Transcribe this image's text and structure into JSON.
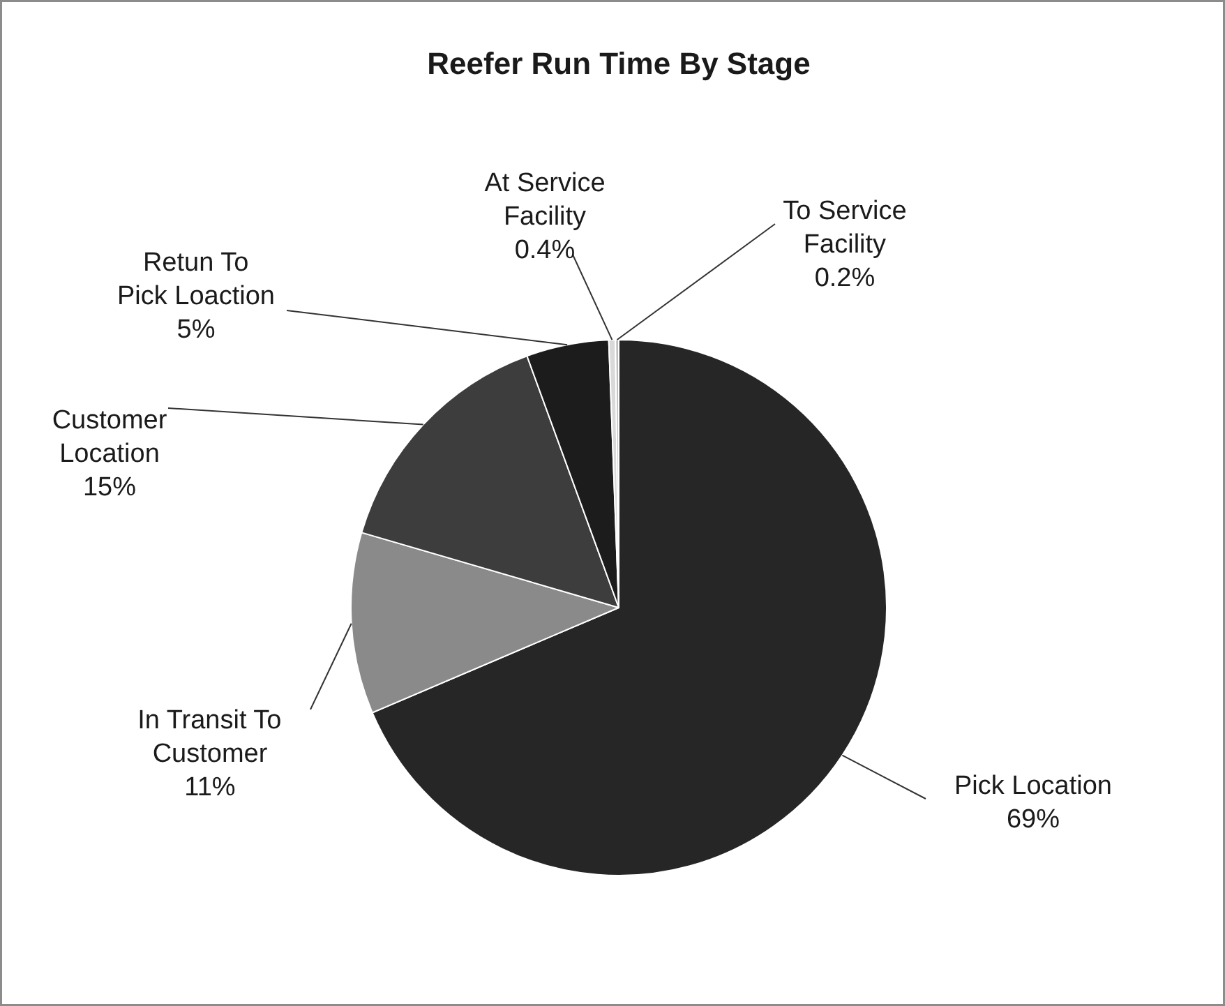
{
  "chart_data": {
    "type": "pie",
    "title": "Reefer Run Time By Stage",
    "categories": [
      "Pick Location",
      "In Transit To Customer",
      "Customer Location",
      "Retun To Pick Loaction",
      "At Service Facility",
      "To Service Facility"
    ],
    "values": [
      69,
      11,
      15,
      5,
      0.4,
      0.2
    ],
    "colors": [
      "#262626",
      "#8a8a8a",
      "#3d3d3d",
      "#1c1c1c",
      "#d9d9d9",
      "#bfbfbf"
    ],
    "value_labels": [
      "69%",
      "11%",
      "15%",
      "5%",
      "0.4%",
      "0.2%"
    ]
  }
}
